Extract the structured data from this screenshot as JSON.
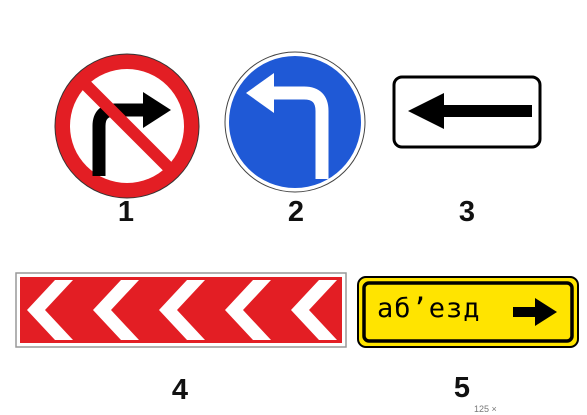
{
  "signs": [
    {
      "number": "1",
      "name": "No right turn"
    },
    {
      "number": "2",
      "name": "Left turn only"
    },
    {
      "number": "3",
      "name": "Direction of action plate"
    },
    {
      "number": "4",
      "name": "Chevron direction of turn"
    },
    {
      "number": "5",
      "name": "Detour",
      "text": "аб’езд"
    }
  ],
  "colors": {
    "red": "#e31e24",
    "blue": "#1f59d6",
    "yellow": "#ffe400",
    "black": "#000000",
    "white": "#ffffff"
  },
  "footer": {
    "text": "125 ×"
  }
}
